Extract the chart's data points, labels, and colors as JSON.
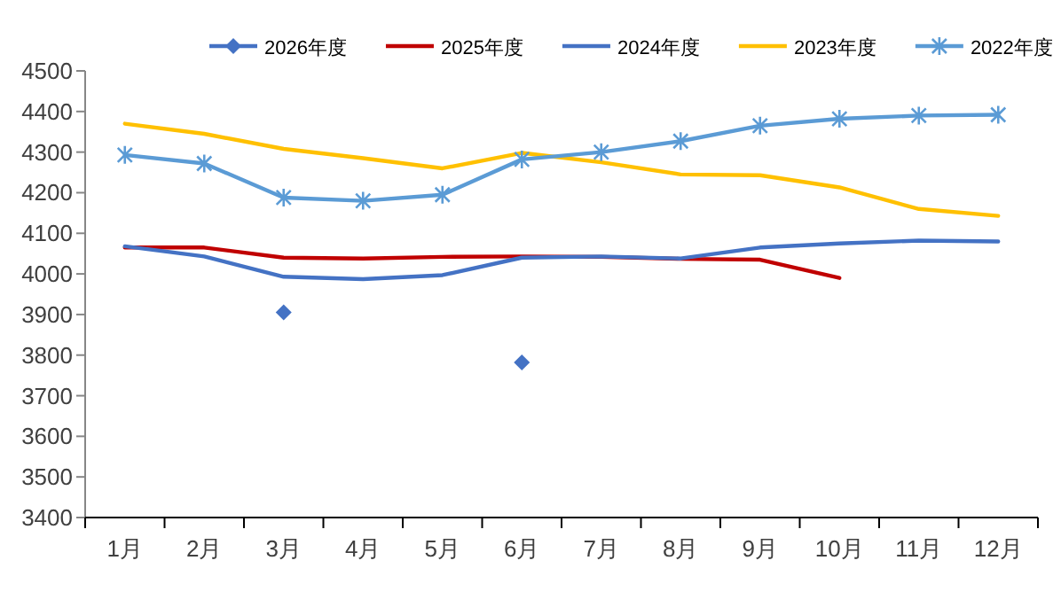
{
  "chart_data": {
    "type": "line",
    "categories": [
      "1月",
      "2月",
      "3月",
      "4月",
      "5月",
      "6月",
      "7月",
      "8月",
      "9月",
      "10月",
      "11月",
      "12月"
    ],
    "series": [
      {
        "name": "2026年度",
        "color": "#4472c4",
        "marker": "diamond",
        "values": [
          null,
          null,
          3905,
          null,
          null,
          3782,
          null,
          null,
          null,
          null,
          null,
          null
        ]
      },
      {
        "name": "2025年度",
        "color": "#c00000",
        "marker": "none",
        "values": [
          4065,
          4065,
          4040,
          4038,
          4042,
          4043,
          4042,
          4037,
          4035,
          3990,
          null,
          null
        ]
      },
      {
        "name": "2024年度",
        "color": "#4472c4",
        "marker": "none",
        "values": [
          4068,
          4043,
          3993,
          3987,
          3997,
          4040,
          4043,
          4038,
          4065,
          4075,
          4082,
          4080
        ]
      },
      {
        "name": "2023年度",
        "color": "#ffc000",
        "marker": "none",
        "values": [
          4370,
          4345,
          4308,
          4285,
          4260,
          4298,
          4275,
          4245,
          4243,
          4213,
          4160,
          4143
        ]
      },
      {
        "name": "2022年度",
        "color": "#5b9bd5",
        "marker": "cross",
        "values": [
          4293,
          4272,
          4188,
          4180,
          4195,
          4282,
          4300,
          4327,
          4365,
          4382,
          4390,
          4392
        ]
      }
    ],
    "ylim": [
      3400,
      4500
    ],
    "yticks": [
      3400,
      3500,
      3600,
      3700,
      3800,
      3900,
      4000,
      4100,
      4200,
      4300,
      4400,
      4500
    ],
    "grid": false,
    "legend": "top"
  }
}
